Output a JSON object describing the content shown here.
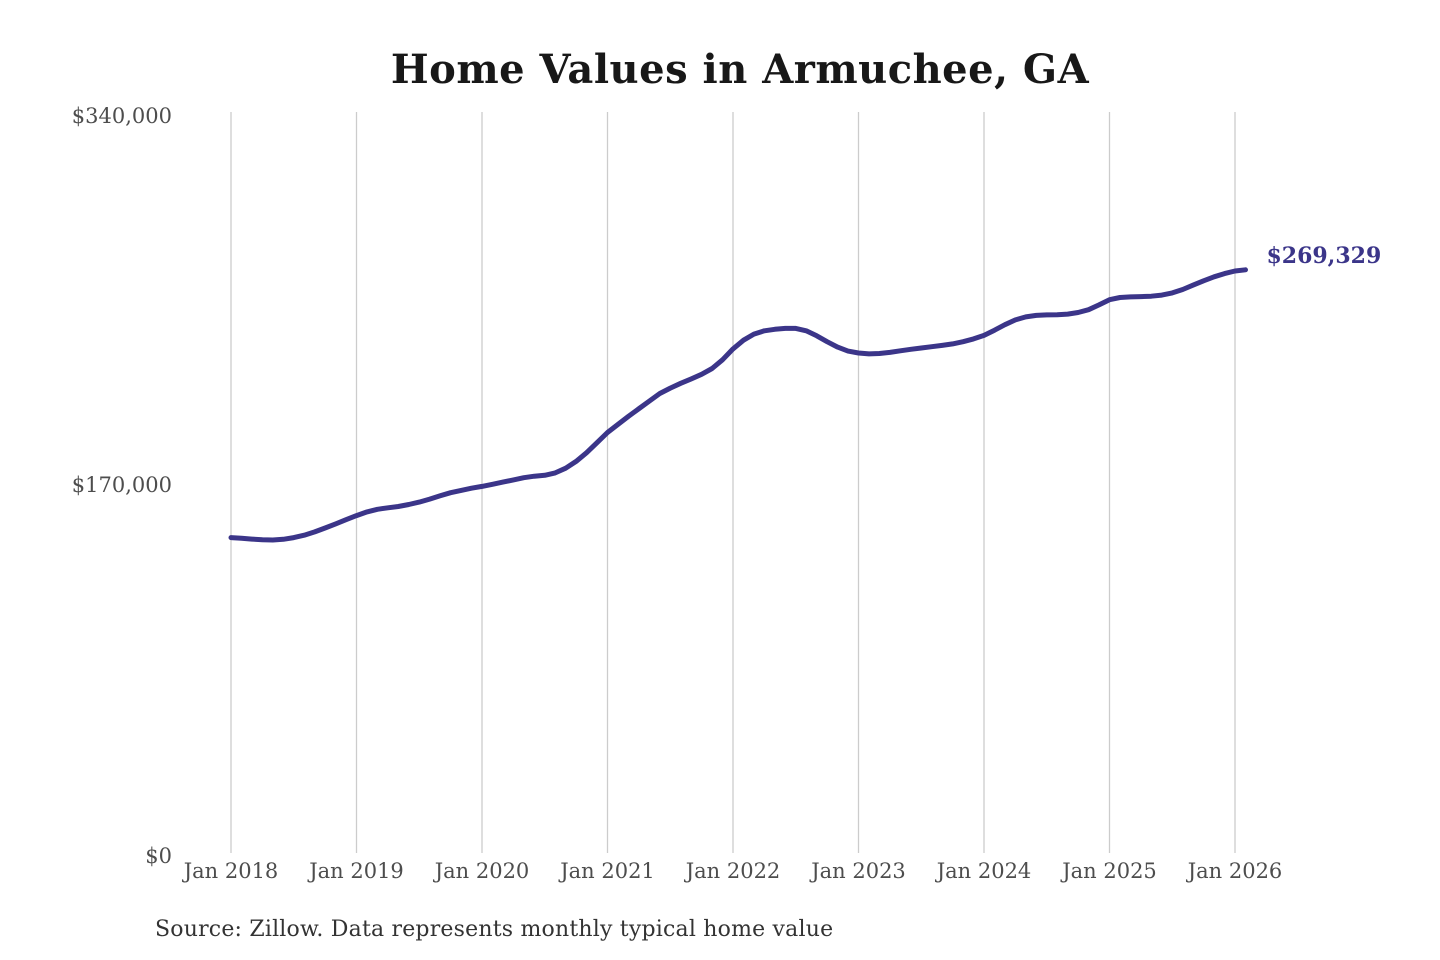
{
  "chart_data": {
    "type": "line",
    "title": "Home Values in Armuchee, GA",
    "y_tick_labels": [
      "$0",
      "$170,000",
      "$340,000"
    ],
    "y_ticks": [
      0,
      170000,
      340000
    ],
    "ylim": [
      0,
      340000
    ],
    "x_tick_labels": [
      "Jan 2018",
      "Jan 2019",
      "Jan 2020",
      "Jan 2021",
      "Jan 2022",
      "Jan 2023",
      "Jan 2024",
      "Jan 2025",
      "Jan 2026"
    ],
    "months_per_tick": 12,
    "monthly_values": [
      146300,
      146000,
      145600,
      145300,
      145200,
      145500,
      146300,
      147400,
      148900,
      150700,
      152600,
      154500,
      156400,
      158100,
      159300,
      160000,
      160600,
      161500,
      162600,
      164000,
      165500,
      166900,
      168000,
      169000,
      169800,
      170800,
      171800,
      172800,
      173800,
      174500,
      174900,
      176000,
      178200,
      181300,
      185300,
      189900,
      194600,
      198300,
      202000,
      205500,
      209000,
      212500,
      215000,
      217200,
      219200,
      221300,
      224000,
      228000,
      233000,
      237000,
      239800,
      241300,
      242000,
      242400,
      242400,
      241300,
      239000,
      236300,
      233800,
      232000,
      231100,
      230700,
      230900,
      231400,
      232100,
      232800,
      233400,
      234000,
      234600,
      235300,
      236300,
      237600,
      239200,
      241600,
      244100,
      246300,
      247700,
      248400,
      248600,
      248700,
      249000,
      249700,
      251000,
      253200,
      255600,
      256600,
      256900,
      257000,
      257200,
      257700,
      258700,
      260300,
      262300,
      264300,
      266100,
      267600,
      268800,
      269329
    ],
    "end_label": "$269,329",
    "final_value": 269329,
    "line_color": "#3b3589",
    "end_label_color": "#3b3589",
    "grid_color": "#cccccc",
    "grid": "vertical-only",
    "legend": false
  },
  "source_note": "Source: Zillow. Data represents monthly typical home value"
}
